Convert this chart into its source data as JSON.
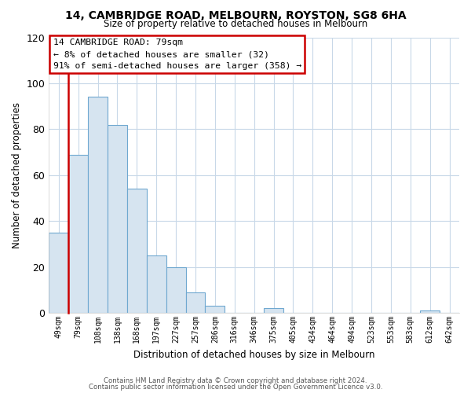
{
  "title1": "14, CAMBRIDGE ROAD, MELBOURN, ROYSTON, SG8 6HA",
  "title2": "Size of property relative to detached houses in Melbourn",
  "xlabel": "Distribution of detached houses by size in Melbourn",
  "ylabel": "Number of detached properties",
  "categories": [
    "49sqm",
    "79sqm",
    "108sqm",
    "138sqm",
    "168sqm",
    "197sqm",
    "227sqm",
    "257sqm",
    "286sqm",
    "316sqm",
    "346sqm",
    "375sqm",
    "405sqm",
    "434sqm",
    "464sqm",
    "494sqm",
    "523sqm",
    "553sqm",
    "583sqm",
    "612sqm",
    "642sqm"
  ],
  "values": [
    35,
    69,
    94,
    82,
    54,
    25,
    20,
    9,
    3,
    0,
    0,
    2,
    0,
    0,
    0,
    0,
    0,
    0,
    0,
    1,
    0
  ],
  "bar_color": "#d6e4f0",
  "bar_edge_color": "#6fa8d0",
  "highlight_bar_index": 1,
  "highlight_color": "#cc0000",
  "ylim": [
    0,
    120
  ],
  "yticks": [
    0,
    20,
    40,
    60,
    80,
    100,
    120
  ],
  "annotation_title": "14 CAMBRIDGE ROAD: 79sqm",
  "annotation_line1": "← 8% of detached houses are smaller (32)",
  "annotation_line2": "91% of semi-detached houses are larger (358) →",
  "footer1": "Contains HM Land Registry data © Crown copyright and database right 2024.",
  "footer2": "Contains public sector information licensed under the Open Government Licence v3.0.",
  "bg_color": "#ffffff",
  "grid_color": "#c8d8e8"
}
